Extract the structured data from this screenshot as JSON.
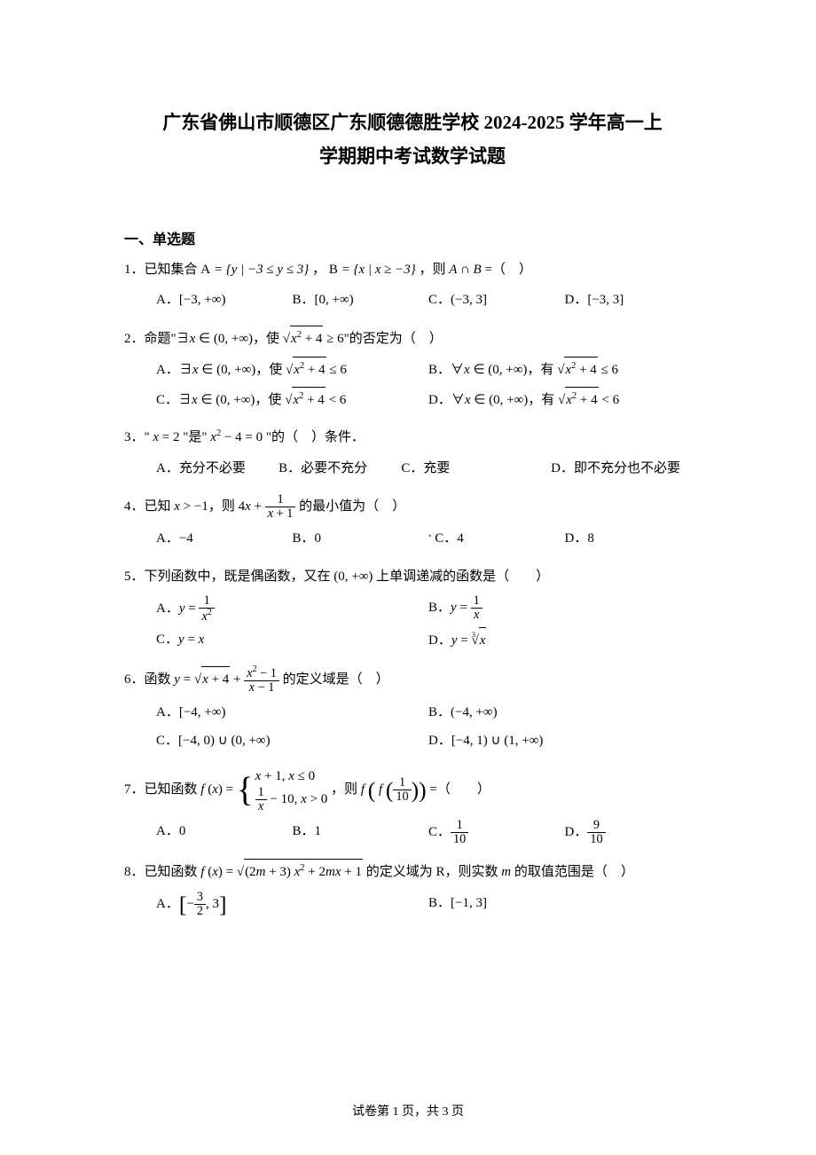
{
  "title_line1": "广东省佛山市顺德区广东顺德德胜学校 2024-2025 学年高一上",
  "title_line2": "学期期中考试数学试题",
  "section1_header": "一、单选题",
  "q1": {
    "stem_pre": "1．已知集合 ",
    "setA": "A = { y | −3 ≤ y ≤ 3 }",
    "mid": "，",
    "setB": "B = { x | x ≥ −3 }",
    "stem_post": "，则 A ∩ B =（　）",
    "A": "A．[−3, +∞)",
    "B": "B．[0, +∞)",
    "C": "C．(−3, 3]",
    "D": "D．[−3, 3]"
  },
  "q2": {
    "stem": "2．命题\"∃x ∈ (0, +∞)，使 √(x² + 4) ≥ 6\"的否定为（　）",
    "A_pre": "A．∃x ∈ (0, +∞)，使 ",
    "A_expr": "√(x²+4) ≤ 6",
    "B_pre": "B．∀x ∈ (0, +∞)，有 ",
    "B_expr": "√(x²+4) ≤ 6",
    "C_pre": "C．∃x ∈ (0, +∞)，使 ",
    "C_expr": "√(x²+4) < 6",
    "D_pre": "D．∀x ∈ (0, +∞)，有 ",
    "D_expr": "√(x²+4) < 6"
  },
  "q3": {
    "stem": "3．\" x = 2 \"是\" x² − 4 = 0 \"的（　）条件．",
    "A": "A．充分不必要",
    "B": "B．必要不充分",
    "C": "C．充要",
    "D": "D．即不充分也不必要"
  },
  "q4": {
    "stem_pre": "4．已知 x > −1，则 ",
    "expr": "4x + 1/(x+1)",
    "stem_post": " 的最小值为（　）",
    "A": "A．−4",
    "B": "B．0",
    "C": "C．4",
    "D": "D．8"
  },
  "q5": {
    "stem": "5．下列函数中，既是偶函数，又在 (0, +∞) 上单调递减的函数是（　　）",
    "A": "A．",
    "A_expr_num": "1",
    "A_expr_den": "x²",
    "B": "B．",
    "B_expr_num": "1",
    "B_expr_den": "x",
    "C": "C．y = x",
    "D": "D．",
    "D_expr": "y = ³√x"
  },
  "q6": {
    "stem_pre": "6．函数 ",
    "stem_post": " 的定义域是（　）",
    "sqrt_inner": "x + 4",
    "frac_num": "x² − 1",
    "frac_den": "x − 1",
    "A": "A．[−4, +∞)",
    "B": "B．(−4, +∞)",
    "C": "C．[−4, 0) ∪ (0, +∞)",
    "D": "D．[−4, 1) ∪ (1, +∞)"
  },
  "q7": {
    "stem_pre": "7．已知函数 ",
    "piece1": "x + 1, x ≤ 0",
    "piece2_a": "1",
    "piece2_b": "x",
    "piece2_c": " − 10, x > 0",
    "stem_mid": "，则 ",
    "inner_num": "1",
    "inner_den": "10",
    "stem_post": " =（　　）",
    "A": "A．0",
    "B": "B．1",
    "C": "C．",
    "C_num": "1",
    "C_den": "10",
    "D": "D．",
    "D_num": "9",
    "D_den": "10"
  },
  "q8": {
    "stem_pre": "8．已知函数 ",
    "sqrt_inner": "(2m + 3) x² + 2mx + 1",
    "stem_post": " 的定义域为 R，则实数 m 的取值范围是（　）",
    "A": "A．",
    "A_num": "3",
    "A_den": "2",
    "A_post": ", 3",
    "B": "B．[−1, 3]"
  },
  "footer": "试卷第 1 页，共 3 页"
}
